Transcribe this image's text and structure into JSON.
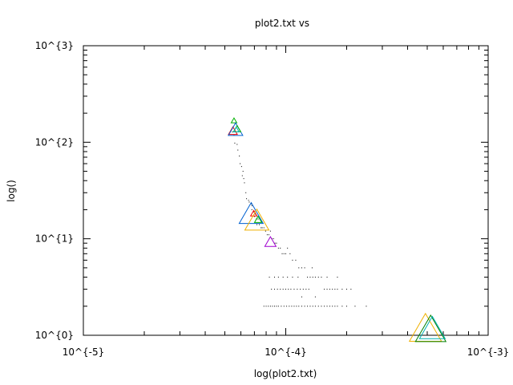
{
  "chart_data": {
    "type": "scatter",
    "title": "plot2.txt vs",
    "xlabel": "log(plot2.txt)",
    "ylabel": "log()",
    "xscale": "log",
    "yscale": "log",
    "xlim": [
      1e-05,
      0.001
    ],
    "ylim": [
      1,
      1000
    ],
    "grid": false,
    "legend": "none",
    "x_ticks": [
      {
        "value": 1e-05,
        "label": "10^{-5}"
      },
      {
        "value": 0.0001,
        "label": "10^{-4}"
      },
      {
        "value": 0.001,
        "label": "10^{-3}"
      }
    ],
    "y_ticks": [
      {
        "value": 1,
        "label": "10^{0}"
      },
      {
        "value": 10,
        "label": "10^{1}"
      },
      {
        "value": 100,
        "label": "10^{2}"
      },
      {
        "value": 1000,
        "label": "10^{3}"
      }
    ],
    "dots": [
      [
        5.45e-05,
        128
      ],
      [
        5.55e-05,
        118
      ],
      [
        5.6e-05,
        98
      ],
      [
        5.75e-05,
        95
      ],
      [
        5.8e-05,
        83
      ],
      [
        5.9e-05,
        72
      ],
      [
        5.95e-05,
        60
      ],
      [
        6.05e-05,
        56
      ],
      [
        6.15e-05,
        50
      ],
      [
        6.1e-05,
        45
      ],
      [
        6.2e-05,
        42
      ],
      [
        6.25e-05,
        38
      ],
      [
        6.35e-05,
        30
      ],
      [
        6.4e-05,
        26
      ],
      [
        6.55e-05,
        25
      ],
      [
        6.6e-05,
        24
      ],
      [
        6.75e-05,
        23
      ],
      [
        6.8e-05,
        20
      ],
      [
        6.95e-05,
        19
      ],
      [
        7.05e-05,
        18
      ],
      [
        7.15e-05,
        16
      ],
      [
        7.3e-05,
        16
      ],
      [
        7.4e-05,
        14
      ],
      [
        7.55e-05,
        13
      ],
      [
        7.65e-05,
        13
      ],
      [
        7.8e-05,
        13
      ],
      [
        7.95e-05,
        12
      ],
      [
        8.1e-05,
        11
      ],
      [
        8.25e-05,
        11
      ],
      [
        8.4e-05,
        12
      ],
      [
        8.55e-05,
        10
      ],
      [
        8.7e-05,
        10
      ],
      [
        8.85e-05,
        9
      ],
      [
        9e-05,
        9
      ],
      [
        9.2e-05,
        8
      ],
      [
        9.4e-05,
        8
      ],
      [
        9.6e-05,
        7
      ],
      [
        9.8e-05,
        7
      ],
      [
        0.0001,
        7
      ],
      [
        0.000102,
        8
      ],
      [
        0.000105,
        7
      ],
      [
        0.000108,
        6
      ],
      [
        0.000112,
        6
      ],
      [
        0.000116,
        5
      ],
      [
        0.00012,
        5
      ],
      [
        0.000124,
        5
      ],
      [
        0.000128,
        4
      ],
      [
        0.000132,
        4
      ],
      [
        0.000136,
        4
      ],
      [
        0.00014,
        4
      ],
      [
        0.000145,
        4
      ],
      [
        0.00015,
        4
      ],
      [
        0.000155,
        3
      ],
      [
        0.00016,
        3
      ],
      [
        0.000165,
        3
      ],
      [
        0.00017,
        3
      ],
      [
        0.000175,
        3
      ],
      [
        0.00018,
        3
      ],
      [
        0.00019,
        3
      ],
      [
        0.0002,
        3
      ],
      [
        0.00021,
        3
      ],
      [
        8.5e-05,
        3
      ],
      [
        8.8e-05,
        3
      ],
      [
        9.1e-05,
        3
      ],
      [
        9.4e-05,
        3
      ],
      [
        9.7e-05,
        3
      ],
      [
        0.0001,
        3
      ],
      [
        0.000103,
        3
      ],
      [
        0.000106,
        3
      ],
      [
        0.00011,
        3
      ],
      [
        0.000114,
        3
      ],
      [
        0.000118,
        3
      ],
      [
        0.000122,
        3
      ],
      [
        0.000126,
        3
      ],
      [
        0.00013,
        3
      ],
      [
        7.8e-05,
        2
      ],
      [
        8e-05,
        2
      ],
      [
        8.2e-05,
        2
      ],
      [
        8.4e-05,
        2
      ],
      [
        8.6e-05,
        2
      ],
      [
        8.8e-05,
        2
      ],
      [
        9e-05,
        2
      ],
      [
        9.2e-05,
        2
      ],
      [
        9.5e-05,
        2
      ],
      [
        9.8e-05,
        2
      ],
      [
        0.000101,
        2
      ],
      [
        0.000104,
        2
      ],
      [
        0.000107,
        2
      ],
      [
        0.00011,
        2
      ],
      [
        0.000113,
        2
      ],
      [
        0.000116,
        2
      ],
      [
        0.00012,
        2
      ],
      [
        0.000124,
        2
      ],
      [
        0.000128,
        2
      ],
      [
        0.000132,
        2
      ],
      [
        0.000136,
        2
      ],
      [
        0.00014,
        2
      ],
      [
        0.000145,
        2
      ],
      [
        0.00015,
        2
      ],
      [
        0.000155,
        2
      ],
      [
        0.00016,
        2
      ],
      [
        0.000165,
        2
      ],
      [
        0.00017,
        2
      ],
      [
        0.000175,
        2
      ],
      [
        0.00018,
        2
      ],
      [
        0.00019,
        2
      ],
      [
        0.0002,
        2
      ],
      [
        0.00022,
        2
      ],
      [
        0.00025,
        2
      ],
      [
        8.3e-05,
        4
      ],
      [
        8.8e-05,
        4
      ],
      [
        9.2e-05,
        4
      ],
      [
        9.7e-05,
        4
      ],
      [
        0.000102,
        4
      ],
      [
        0.000108,
        4
      ],
      [
        0.000115,
        4
      ],
      [
        0.000135,
        5
      ],
      [
        0.00016,
        4
      ],
      [
        0.00018,
        4
      ],
      [
        0.00012,
        2.5
      ],
      [
        0.00014,
        2.5
      ],
      [
        7.2e-05,
        14
      ],
      [
        7.6e-05,
        15
      ],
      [
        7e-05,
        17
      ],
      [
        6.8e-05,
        22
      ]
    ],
    "markers": [
      {
        "x": 5.55e-05,
        "y": 165,
        "size": 7,
        "color": "#00b000"
      },
      {
        "x": 5.48e-05,
        "y": 128,
        "size": 11,
        "color": "#ff0000"
      },
      {
        "x": 5.65e-05,
        "y": 130,
        "size": 18,
        "color": "#0060d0"
      },
      {
        "x": 5.75e-05,
        "y": 135,
        "size": 9,
        "color": "#00b000"
      },
      {
        "x": 5.7e-05,
        "y": 133,
        "size": 7,
        "color": "#00b0b0"
      },
      {
        "x": 6.75e-05,
        "y": 17,
        "size": 30,
        "color": "#0060d0"
      },
      {
        "x": 6.95e-05,
        "y": 18,
        "size": 8,
        "color": "#ff0000"
      },
      {
        "x": 7.2e-05,
        "y": 14.5,
        "size": 30,
        "color": "#f0b000"
      },
      {
        "x": 7.3e-05,
        "y": 15.5,
        "size": 9,
        "color": "#00b000"
      },
      {
        "x": 8.4e-05,
        "y": 9,
        "size": 14,
        "color": "#a000d0"
      },
      {
        "x": 0.00049,
        "y": 1.08,
        "size": 40,
        "color": "#f0b000"
      },
      {
        "x": 0.00052,
        "y": 1.06,
        "size": 38,
        "color": "#008000"
      },
      {
        "x": 0.00053,
        "y": 1.1,
        "size": 32,
        "color": "#00b0b0"
      }
    ]
  }
}
